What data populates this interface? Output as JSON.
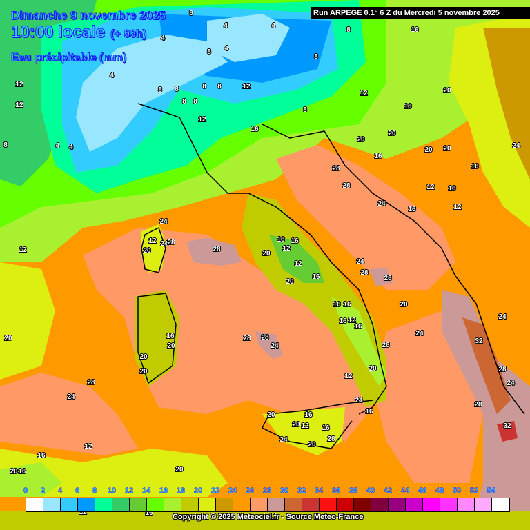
{
  "header": {
    "date": "Dimanche 9 novembre 2025",
    "time": "10:00 locale",
    "offset": "(+ 99h)",
    "variable": "Eau précipitable (mm)",
    "run": "Run ARPEGE 0.1° 6 Z du Mercredi 5 novembre 2025"
  },
  "legend": {
    "ticks": [
      "0",
      "2",
      "4",
      "6",
      "8",
      "10",
      "12",
      "14",
      "16",
      "18",
      "20",
      "22",
      "24",
      "26",
      "28",
      "30",
      "32",
      "34",
      "36",
      "38",
      "40",
      "42",
      "44",
      "46",
      "48",
      "50",
      "52",
      "54"
    ],
    "colors": [
      "#ffffff",
      "#99e6ff",
      "#33ccff",
      "#0099ff",
      "#00ff99",
      "#33cc66",
      "#66cc33",
      "#66ff00",
      "#a8f030",
      "#c0cc00",
      "#ddee11",
      "#cc9900",
      "#ff9900",
      "#ff9966",
      "#cc9999",
      "#cc6633",
      "#cc3333",
      "#ff1111",
      "#cc0000",
      "#800000",
      "#800040",
      "#990080",
      "#cc00cc",
      "#ff00ff",
      "#ff33ff",
      "#ff88ff",
      "#ffaaff",
      "#ffffff"
    ]
  },
  "copyright": "Copyright © 2025 Meteociel.fr - Source Meteo-France",
  "contour_labels": [
    "8",
    "4",
    "4",
    "4",
    "8",
    "8",
    "4",
    "8",
    "4",
    "8",
    "8",
    "8",
    "8",
    "12",
    "8",
    "8",
    "16",
    "12",
    "12",
    "12",
    "12",
    "16",
    "8",
    "4",
    "4",
    "8",
    "12",
    "16",
    "12",
    "16",
    "20",
    "16",
    "20",
    "24",
    "20",
    "24",
    "16",
    "20",
    "20",
    "16",
    "28",
    "28",
    "24",
    "24",
    "12",
    "28",
    "20",
    "12",
    "28",
    "16",
    "12",
    "16",
    "12",
    "20",
    "24",
    "28",
    "28",
    "20",
    "16",
    "16",
    "16",
    "16",
    "12",
    "16",
    "28",
    "20",
    "24",
    "20",
    "16",
    "20",
    "28",
    "24",
    "28",
    "32",
    "28",
    "24",
    "28",
    "32",
    "24",
    "20",
    "20",
    "20",
    "16",
    "20",
    "24",
    "28",
    "12",
    "16",
    "20",
    "24",
    "16",
    "12",
    "20",
    "28",
    "24",
    "12",
    "16",
    "20",
    "16",
    "12",
    "20",
    "16"
  ]
}
